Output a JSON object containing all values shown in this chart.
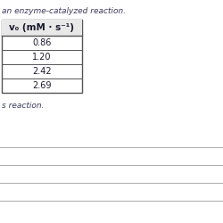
{
  "title_text": "an enzyme-catalyzed reaction.",
  "subtitle_text": "s reaction.",
  "col_header": "v₀ (mM · s⁻¹)",
  "rows": [
    "0.86",
    "1.20",
    "2.42",
    "2.69"
  ],
  "bg_color": "#ffffff",
  "text_color": "#1a1a2e",
  "line_color": "#b0b0b0",
  "border_color": "#555555",
  "title_fontsize": 6.5,
  "cell_fontsize": 7.0,
  "header_fontsize": 7.5,
  "subtitle_fontsize": 6.5
}
